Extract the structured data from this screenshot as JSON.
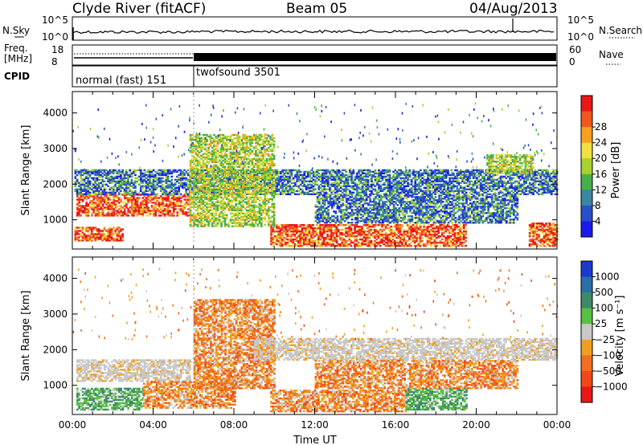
{
  "header": {
    "station": "Clyde River (fitACF)",
    "beam": "Beam 05",
    "date": "04/Aug/2013"
  },
  "noise_panel": {
    "left_label": "N.Sky",
    "left_ticks": [
      "10^5",
      "10^0"
    ],
    "right_label": "N.Search",
    "right_ticks": [
      "10^5",
      "10^0"
    ]
  },
  "freq_panel": {
    "left_label_line1": "Freq.",
    "left_label_line2": "[MHz]",
    "left_ticks": [
      "18",
      "8"
    ],
    "right_label": "Nave",
    "right_ticks": [
      "60",
      "0"
    ]
  },
  "cpid_panel": {
    "label": "CPID",
    "segments": [
      {
        "name": "normal (fast) 151",
        "start_hour": 0,
        "end_hour": 6
      },
      {
        "name": "twofsound 3501",
        "start_hour": 6,
        "end_hour": 24
      }
    ]
  },
  "chart_data": [
    {
      "type": "heatmap",
      "quantity": "Power",
      "ylabel": "Slant Range [km]",
      "ylim": [
        180,
        4600
      ],
      "yticks": [
        "1000",
        "2000",
        "3000",
        "4000"
      ],
      "xlim": [
        0,
        24
      ],
      "colorbar": {
        "label": "Power [dB]",
        "ticks": [
          "4",
          "8",
          "12",
          "16",
          "20",
          "24",
          "28"
        ],
        "colors": [
          "#1a1aee",
          "#2a50c8",
          "#3a86a0",
          "#48b04a",
          "#a8d030",
          "#f0e040",
          "#f8a020",
          "#f05820",
          "#e81818"
        ]
      },
      "regions": [
        {
          "t0": 0.2,
          "t1": 5.8,
          "r0": 1100,
          "r1": 1700,
          "level": "high"
        },
        {
          "t0": 0.1,
          "t1": 2.5,
          "r0": 400,
          "r1": 800,
          "level": "high"
        },
        {
          "t0": 9.8,
          "t1": 19.5,
          "r0": 250,
          "r1": 850,
          "level": "high"
        },
        {
          "t0": 22.6,
          "t1": 24,
          "r0": 250,
          "r1": 900,
          "level": "high"
        },
        {
          "t0": 0.1,
          "t1": 24,
          "r0": 1700,
          "r1": 2400,
          "level": "low"
        },
        {
          "t0": 5.8,
          "t1": 10,
          "r0": 800,
          "r1": 3400,
          "level": "mid"
        },
        {
          "t0": 12,
          "t1": 22,
          "r0": 900,
          "r1": 1700,
          "level": "low"
        },
        {
          "t0": 20.5,
          "t1": 22.8,
          "r0": 2300,
          "r1": 2800,
          "level": "mid"
        }
      ]
    },
    {
      "type": "heatmap",
      "quantity": "Velocity",
      "xlabel": "Time UT",
      "ylabel": "Slant Range [km]",
      "ylim": [
        180,
        4600
      ],
      "yticks": [
        "1000",
        "2000",
        "3000",
        "4000"
      ],
      "xlim": [
        0,
        24
      ],
      "xticks": [
        "00:00",
        "04:00",
        "08:00",
        "12:00",
        "16:00",
        "20:00",
        "00:00"
      ],
      "colorbar": {
        "label": "Velocity [m s⁻¹]",
        "ticks": [
          "1000",
          "500",
          "100",
          "25",
          "−25",
          "−100",
          "−500",
          "−1000"
        ],
        "colors": [
          "#1a3acc",
          "#2c6ea8",
          "#3c8a6a",
          "#58c040",
          "#c8c8c8",
          "#f0a020",
          "#f07020",
          "#f04818",
          "#e81818"
        ]
      },
      "regions": [
        {
          "t0": 0.2,
          "t1": 5.8,
          "r0": 1100,
          "r1": 1700,
          "level": "grey"
        },
        {
          "t0": 0.2,
          "t1": 3.5,
          "r0": 300,
          "r1": 900,
          "level": "green"
        },
        {
          "t0": 3.5,
          "t1": 8,
          "r0": 350,
          "r1": 1100,
          "level": "orange"
        },
        {
          "t0": 6,
          "t1": 10,
          "r0": 900,
          "r1": 3400,
          "level": "orange"
        },
        {
          "t0": 9.8,
          "t1": 16.5,
          "r0": 250,
          "r1": 850,
          "level": "orange"
        },
        {
          "t0": 16.5,
          "t1": 19.5,
          "r0": 300,
          "r1": 900,
          "level": "green"
        },
        {
          "t0": 9,
          "t1": 24,
          "r0": 1700,
          "r1": 2300,
          "level": "grey"
        },
        {
          "t0": 12,
          "t1": 22,
          "r0": 900,
          "r1": 1700,
          "level": "orange"
        }
      ]
    }
  ]
}
